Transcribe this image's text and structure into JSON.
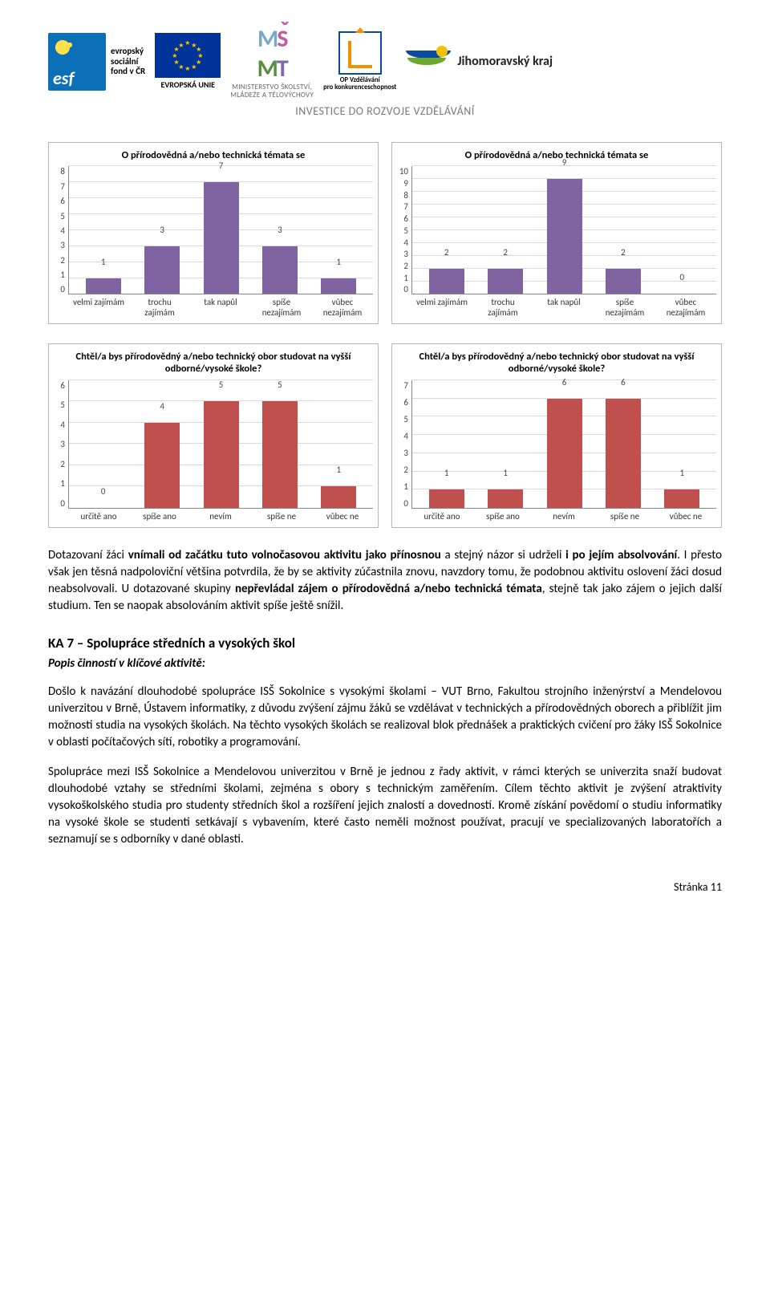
{
  "header": {
    "esf_lines": [
      "evropský",
      "sociální",
      "fond v ČR"
    ],
    "eu_caption": "EVROPSKÁ UNIE",
    "msmt_caption": [
      "MINISTERSTVO ŠKOLSTVÍ,",
      "MLÁDEŽE A TĚLOVÝCHOVY"
    ],
    "opvk_caption": [
      "OP Vzdělávání",
      "pro konkurenceschopnost"
    ],
    "jmk_label": "Jihomoravský kraj",
    "tagline": "INVESTICE DO ROZVOJE VZDĚLÁVÁNÍ"
  },
  "charts": [
    {
      "title": "O přírodovědná a/nebo technická témata se",
      "type": "bar",
      "ymax": 8,
      "ytick_step": 1,
      "bar_color": "#8064a2",
      "grid_color": "#d9d9d9",
      "axis_color": "#888888",
      "categories": [
        "velmi zajímám",
        "trochu\nzajímám",
        "tak napůl",
        "spíše\nnezajímám",
        "vůbec\nnezajímám"
      ],
      "values": [
        1,
        3,
        7,
        3,
        1
      ]
    },
    {
      "title": "O přírodovědná a/nebo technická témata se",
      "type": "bar",
      "ymax": 10,
      "ytick_step": 1,
      "bar_color": "#8064a2",
      "grid_color": "#d9d9d9",
      "axis_color": "#888888",
      "categories": [
        "velmi zajímám",
        "trochu\nzajímám",
        "tak napůl",
        "spíše\nnezajímám",
        "vůbec\nnezajímám"
      ],
      "values": [
        2,
        2,
        9,
        2,
        0
      ]
    },
    {
      "title": "Chtěl/a bys přírodovědný a/nebo technický obor studovat na vyšší odborné/vysoké škole?",
      "type": "bar",
      "ymax": 6,
      "ytick_step": 1,
      "bar_color": "#c0504d",
      "grid_color": "#d9d9d9",
      "axis_color": "#888888",
      "categories": [
        "určitě ano",
        "spíše ano",
        "nevím",
        "spíše ne",
        "vůbec ne"
      ],
      "values": [
        0,
        4,
        5,
        5,
        1
      ]
    },
    {
      "title": "Chtěl/a bys přírodovědný a/nebo technický obor studovat na vyšší odborné/vysoké škole?",
      "type": "bar",
      "ymax": 7,
      "ytick_step": 1,
      "bar_color": "#c0504d",
      "grid_color": "#d9d9d9",
      "axis_color": "#888888",
      "categories": [
        "určitě ano",
        "spíše ano",
        "nevím",
        "spíše ne",
        "vůbec ne"
      ],
      "values": [
        1,
        1,
        6,
        6,
        1
      ]
    }
  ],
  "body": {
    "p1_a": "Dotazovaní žáci ",
    "p1_b": "vnímali od začátku tuto volnočasovou aktivitu jako přínosnou",
    "p1_c": " a stejný názor si udrželi ",
    "p1_d": "i po jejím absolvování",
    "p1_e": ". I přesto však jen těsná nadpoloviční většina potvrdila, že by se aktivity zúčastnila znovu, navzdory tomu, že podobnou aktivitu oslovení žáci dosud neabsolvovali. U dotazované skupiny ",
    "p1_f": "nepřevládal zájem o přírodovědná a/nebo technická témata",
    "p1_g": ", stejně tak jako zájem o jejich další studium. Ten se naopak absolováním aktivit spíše ještě snížil.",
    "section_heading": "KA 7 – Spolupráce středních a vysokých škol",
    "subhead": "Popis činností v klíčové aktivitě:",
    "p2": "Došlo k navázání dlouhodobé spolupráce ISŠ Sokolnice s vysokými školami – VUT Brno, Fakultou strojního inženýrství a Mendelovou univerzitou v Brně, Ústavem informatiky, z důvodu zvýšení zájmu žáků se vzdělávat v technických a přírodovědných oborech a přiblížit jim možnosti studia na vysokých školách. Na těchto vysokých školách se realizoval blok přednášek a praktických cvičení pro žáky ISŠ Sokolnice v oblasti počítačových sítí, robotiky a programování.",
    "p3": "Spolupráce mezi ISŠ Sokolnice a Mendelovou univerzitou v Brně je jednou z řady aktivit, v rámci kterých se univerzita snaží budovat dlouhodobé vztahy se středními školami, zejména s obory s technickým zaměřením. Cílem těchto aktivit je zvýšení atraktivity vysokoškolského studia pro studenty středních škol a rozšíření jejich znalostí a dovedností. Kromě získání povědomí o studiu informatiky na vysoké škole se studenti setkávají s vybavením, které často neměli možnost používat, pracují ve specializovaných laboratořích a seznamují se s odborníky v dané oblasti."
  },
  "footer": "Stránka 11"
}
